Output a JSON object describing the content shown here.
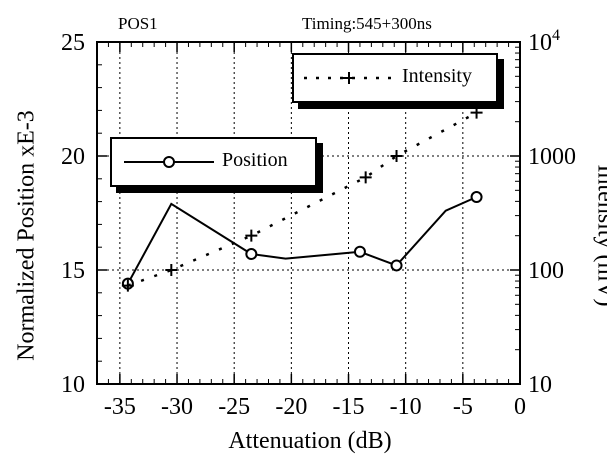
{
  "chart_data": {
    "type": "line",
    "title": "",
    "annotations": {
      "top_left": "POS1",
      "top_right": "Timing:545+300ns"
    },
    "xlabel": "Attenuation (dB)",
    "ylabel": "Normalized Position xE-3",
    "ylabel_right": "Intensity (mV)",
    "xlim": [
      -37,
      0
    ],
    "ylim": [
      10,
      25
    ],
    "ylim_right": [
      10,
      10000
    ],
    "y_right_scale": "log",
    "x_ticks": [
      "-35",
      "-30",
      "-25",
      "-20",
      "-15",
      "-10",
      "-5",
      "0"
    ],
    "y_ticks": [
      "10",
      "15",
      "20",
      "25"
    ],
    "y_right_ticks": [
      {
        "base": "10",
        "exp": ""
      },
      {
        "base": "100",
        "exp": ""
      },
      {
        "base": "1000",
        "exp": ""
      },
      {
        "base": "10",
        "exp": "4"
      }
    ],
    "grid": true,
    "series": [
      {
        "name": "Position",
        "axis": "left",
        "style": "solid-line-open-circle",
        "x": [
          -34.3,
          -30.5,
          -23.5,
          -20.5,
          -14.0,
          -10.8,
          -6.5,
          -3.8
        ],
        "y": [
          14.4,
          17.9,
          15.7,
          15.5,
          15.8,
          15.2,
          17.6,
          18.2
        ],
        "markers": [
          true,
          false,
          true,
          false,
          true,
          true,
          false,
          true
        ]
      },
      {
        "name": "Intensity",
        "axis": "right",
        "style": "dotted-line-plus",
        "x": [
          -34.3,
          -30.5,
          -23.5,
          -13.5,
          -10.8,
          -3.8
        ],
        "y": [
          73,
          100,
          200,
          650,
          1000,
          2400
        ]
      }
    ],
    "legend": [
      {
        "label": "Position",
        "placement": "upper-left"
      },
      {
        "label": "Intensity",
        "placement": "top-right"
      }
    ]
  }
}
